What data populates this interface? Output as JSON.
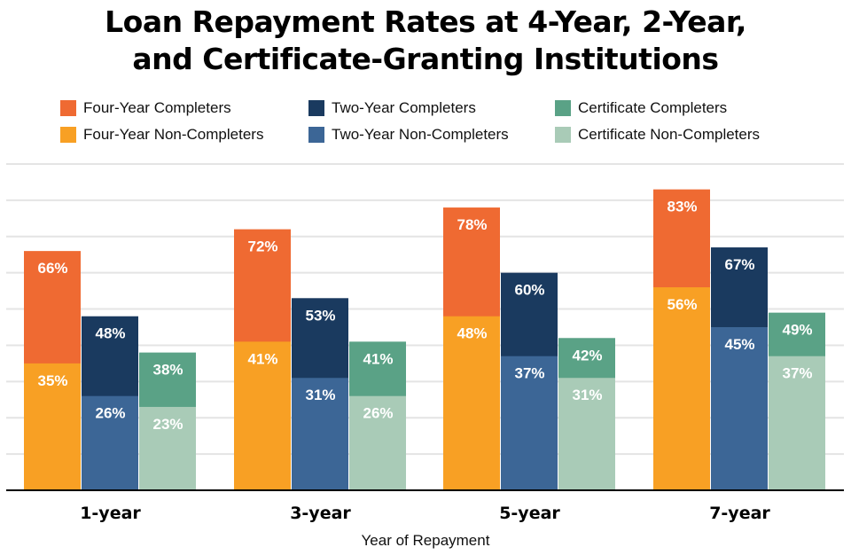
{
  "chart_data": {
    "type": "bar",
    "title_lines": [
      "Loan Repayment Rates at 4-Year, 2-Year,",
      "and Certificate-Granting Institutions"
    ],
    "xlabel": "Year of Repayment",
    "ylabel": "",
    "categories": [
      "1-year",
      "3-year",
      "5-year",
      "7-year"
    ],
    "ylim": [
      0,
      90
    ],
    "grid": true,
    "legend_position": "top",
    "series": [
      {
        "name": "Four-Year Completers",
        "color": "#ef6a32",
        "values": [
          66,
          72,
          78,
          83
        ]
      },
      {
        "name": "Two-Year Completers",
        "color": "#1a3a5f",
        "values": [
          48,
          53,
          60,
          67
        ]
      },
      {
        "name": "Certificate Completers",
        "color": "#5aa286",
        "values": [
          38,
          41,
          42,
          49
        ]
      },
      {
        "name": "Four-Year Non-Completers",
        "color": "#f8a024",
        "values": [
          35,
          41,
          48,
          56
        ]
      },
      {
        "name": "Two-Year Non-Completers",
        "color": "#3c6696",
        "values": [
          26,
          31,
          37,
          45
        ]
      },
      {
        "name": "Certificate Non-Completers",
        "color": "#a9cbb7",
        "values": [
          23,
          26,
          31,
          37
        ]
      }
    ],
    "value_format": "{v}%"
  }
}
